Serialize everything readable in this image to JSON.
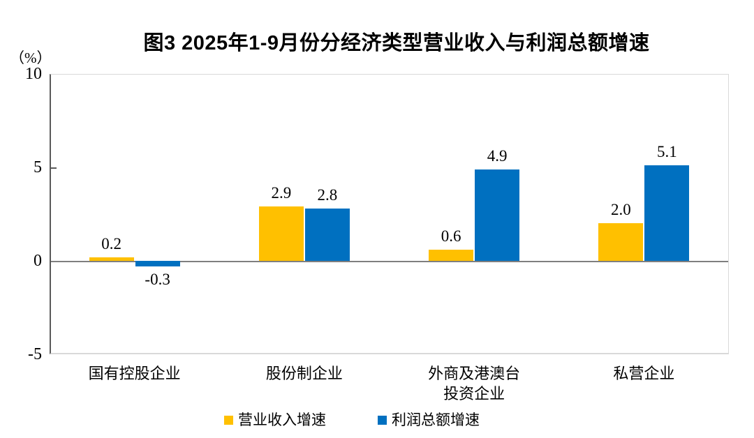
{
  "chart_data": {
    "type": "bar",
    "title": "图3  2025年1-9月份分经济类型营业收入与利润总额增速",
    "unit_label": "（%）",
    "categories": [
      "国有控股企业",
      "股份制企业",
      "外商及港澳台\n投资企业",
      "私营企业"
    ],
    "series": [
      {
        "name": "营业收入增速",
        "color": "#FFC000",
        "values": [
          0.2,
          2.9,
          0.6,
          2.0
        ]
      },
      {
        "name": "利润总额增速",
        "color": "#0070C0",
        "values": [
          -0.3,
          2.8,
          4.9,
          5.1
        ]
      }
    ],
    "ylim": [
      -5,
      10
    ],
    "yticks": [
      10,
      5,
      0,
      -5
    ],
    "grid": false,
    "legend_position": "bottom",
    "axis_color": "#595959",
    "border_color": "#D9D9D9",
    "zero_line_color": "#7F7F7F",
    "label_decimals": 1
  }
}
